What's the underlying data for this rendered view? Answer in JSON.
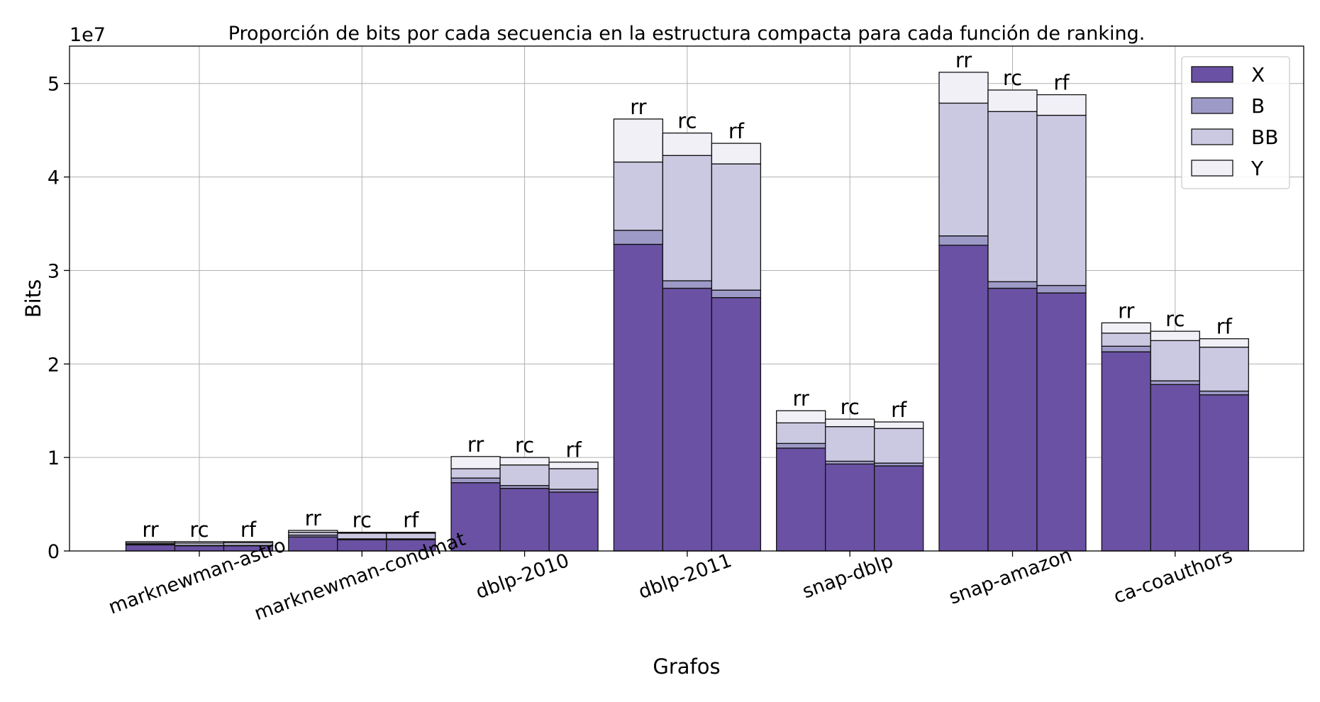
{
  "chart_data": {
    "type": "bar",
    "stacked": true,
    "title": "Proporción de bits por cada secuencia en la estructura compacta para cada función de ranking.",
    "xlabel": "Grafos",
    "ylabel": "Bits",
    "y_multiplier_label": "1e7",
    "ylim": [
      0,
      5.4
    ],
    "yticks": [
      "0",
      "1",
      "2",
      "3",
      "4",
      "5"
    ],
    "grid": true,
    "legend_position": "top-right",
    "categories": [
      "marknewman-astro",
      "marknewman-condmat",
      "dblp-2010",
      "dblp-2011",
      "snap-dblp",
      "snap-amazon",
      "ca-coauthors"
    ],
    "bar_labels": [
      "rr",
      "rc",
      "rf"
    ],
    "series": [
      {
        "name": "X",
        "color": "#6a51a3",
        "values": [
          [
            0.065,
            0.055,
            0.055
          ],
          [
            0.15,
            0.12,
            0.12
          ],
          [
            0.73,
            0.67,
            0.63
          ],
          [
            3.28,
            2.81,
            2.71
          ],
          [
            1.1,
            0.93,
            0.91
          ],
          [
            3.27,
            2.81,
            2.76
          ],
          [
            2.13,
            1.78,
            1.67
          ]
        ]
      },
      {
        "name": "B",
        "color": "#9e9ac8",
        "values": [
          [
            0.008,
            0.005,
            0.005
          ],
          [
            0.02,
            0.01,
            0.01
          ],
          [
            0.05,
            0.03,
            0.03
          ],
          [
            0.15,
            0.08,
            0.08
          ],
          [
            0.05,
            0.03,
            0.03
          ],
          [
            0.1,
            0.07,
            0.08
          ],
          [
            0.06,
            0.04,
            0.04
          ]
        ]
      },
      {
        "name": "BB",
        "color": "#cbc9e2",
        "values": [
          [
            0.012,
            0.025,
            0.028
          ],
          [
            0.03,
            0.06,
            0.06
          ],
          [
            0.1,
            0.22,
            0.22
          ],
          [
            0.73,
            1.34,
            1.35
          ],
          [
            0.22,
            0.37,
            0.37
          ],
          [
            1.42,
            1.82,
            1.82
          ],
          [
            0.14,
            0.43,
            0.47
          ]
        ]
      },
      {
        "name": "Y",
        "color": "#f2f0f7",
        "values": [
          [
            0.015,
            0.015,
            0.012
          ],
          [
            0.02,
            0.01,
            0.01
          ],
          [
            0.13,
            0.08,
            0.07
          ],
          [
            0.46,
            0.24,
            0.22
          ],
          [
            0.13,
            0.08,
            0.07
          ],
          [
            0.33,
            0.23,
            0.22
          ],
          [
            0.11,
            0.1,
            0.09
          ]
        ]
      }
    ]
  }
}
